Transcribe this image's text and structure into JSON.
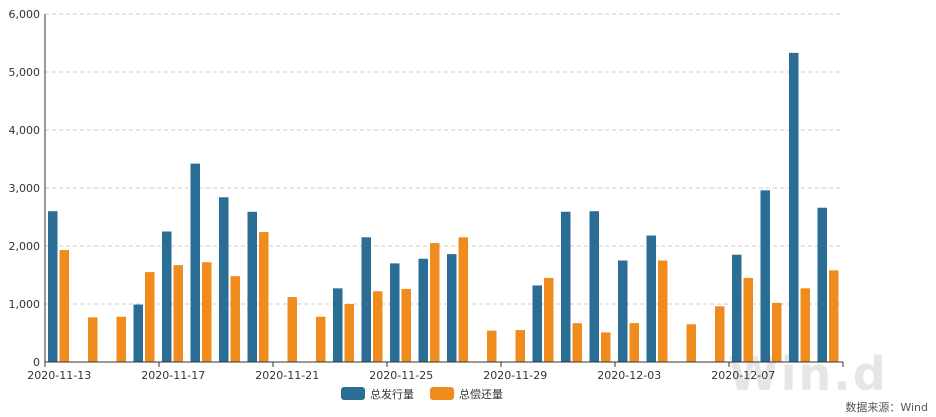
{
  "chart_data": {
    "type": "bar",
    "title": "",
    "xlabel": "",
    "ylabel": "",
    "ylim": [
      0,
      6000
    ],
    "y_ticks": [
      "0",
      "1,000",
      "2,000",
      "3,000",
      "4,000",
      "5,000",
      "6,000"
    ],
    "grid": "horizontal dashed",
    "legend_position": "bottom-center",
    "categories": [
      "2020-11-13",
      "2020-11-14",
      "2020-11-15",
      "2020-11-16",
      "2020-11-17",
      "2020-11-18",
      "2020-11-19",
      "2020-11-20",
      "2020-11-21",
      "2020-11-22",
      "2020-11-23",
      "2020-11-24",
      "2020-11-25",
      "2020-11-26",
      "2020-11-27",
      "2020-11-28",
      "2020-11-29",
      "2020-11-30",
      "2020-12-01",
      "2020-12-02",
      "2020-12-03",
      "2020-12-04",
      "2020-12-05",
      "2020-12-06",
      "2020-12-07",
      "2020-12-08",
      "2020-12-09",
      "2020-12-10"
    ],
    "x_tick_labels": [
      "2020-11-13",
      "2020-11-17",
      "2020-11-21",
      "2020-11-25",
      "2020-11-29",
      "2020-12-03",
      "2020-12-07"
    ],
    "series": [
      {
        "name": "总发行量",
        "color": "#2a6e96",
        "values": [
          2600,
          0,
          0,
          990,
          2250,
          3420,
          2840,
          2590,
          0,
          0,
          1270,
          2150,
          1700,
          1780,
          1860,
          0,
          0,
          1320,
          2590,
          2600,
          1750,
          2180,
          0,
          0,
          1850,
          2960,
          5330,
          2660
        ]
      },
      {
        "name": "总偿还量",
        "color": "#f08c1e",
        "values": [
          1930,
          770,
          780,
          1550,
          1670,
          1720,
          1480,
          2240,
          1120,
          780,
          1000,
          1220,
          1260,
          2050,
          2150,
          540,
          550,
          1450,
          670,
          510,
          670,
          1750,
          650,
          960,
          1450,
          1020,
          1270,
          1580
        ]
      }
    ]
  },
  "source_note": "数据来源：Wind",
  "watermark_text": "Win.d"
}
